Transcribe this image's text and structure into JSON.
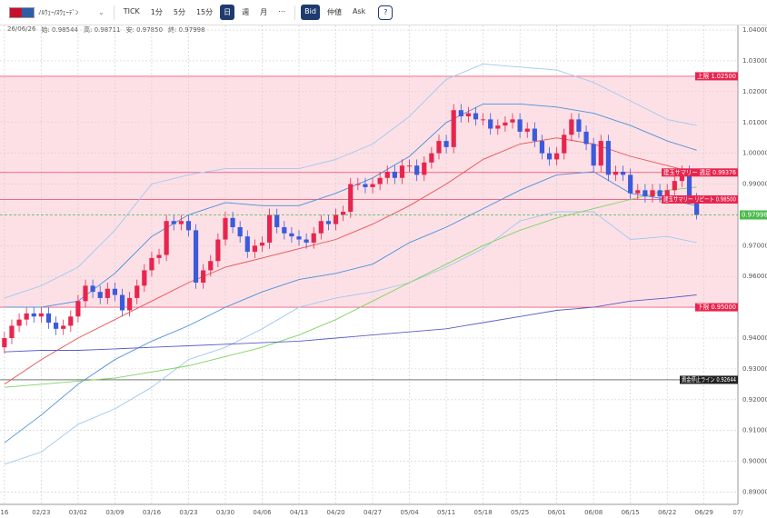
{
  "toolbar": {
    "pair": "ﾉﾙｳｪｰ/ｽｳｪｰﾃﾞﾝ",
    "buttons": [
      "TICK",
      "1分",
      "5分",
      "15分",
      "日",
      "週",
      "月",
      "⋯"
    ],
    "active_button": 4,
    "price_types": [
      "Bid",
      "仲値",
      "Ask"
    ],
    "active_price": 0,
    "help": "?"
  },
  "info_bar": {
    "date": "26/06/26",
    "items": [
      "始: 0.98544",
      "高: 0.98711",
      "安: 0.97850",
      "終: 0.97998"
    ]
  },
  "chart_data": {
    "type": "candlestick",
    "up_color": "#e8254e",
    "down_color": "#3b5bdb",
    "open": [
      0.937,
      0.94,
      0.944,
      0.946,
      0.948,
      0.947,
      0.948,
      0.945,
      0.943,
      0.944,
      0.947,
      0.952,
      0.957,
      0.955,
      0.953,
      0.956,
      0.954,
      0.949,
      0.953,
      0.957,
      0.962,
      0.966,
      0.967,
      0.978,
      0.977,
      0.978,
      0.975,
      0.958,
      0.962,
      0.965,
      0.972,
      0.979,
      0.976,
      0.973,
      0.968,
      0.97,
      0.971,
      0.98,
      0.976,
      0.974,
      0.973,
      0.972,
      0.971,
      0.974,
      0.978,
      0.977,
      0.98,
      0.981,
      0.99,
      0.99,
      0.989,
      0.99,
      0.992,
      0.994,
      0.992,
      0.996,
      0.996,
      0.993,
      0.997,
      1.0,
      1.004,
      1.002,
      1.014,
      1.012,
      1.013,
      1.011,
      1.011,
      1.008,
      1.009,
      1.01,
      1.011,
      1.007,
      1.008,
      1.004,
      1.0,
      0.998,
      1.0,
      1.006,
      1.011,
      1.007,
      1.003,
      0.996,
      1.004,
      0.993,
      0.994,
      0.993,
      0.987,
      0.988,
      0.986,
      0.988,
      0.986,
      0.988,
      0.991,
      0.994,
      0.98544
    ],
    "high": [
      0.942,
      0.946,
      0.948,
      0.95,
      0.95,
      0.95,
      0.95,
      0.947,
      0.946,
      0.949,
      0.954,
      0.959,
      0.959,
      0.957,
      0.958,
      0.958,
      0.956,
      0.955,
      0.959,
      0.964,
      0.968,
      0.969,
      0.98,
      0.98,
      0.98,
      0.98,
      0.977,
      0.964,
      0.967,
      0.974,
      0.981,
      0.981,
      0.978,
      0.975,
      0.972,
      0.973,
      0.982,
      0.982,
      0.978,
      0.976,
      0.975,
      0.974,
      0.976,
      0.98,
      0.98,
      0.982,
      0.983,
      0.992,
      0.992,
      0.992,
      0.992,
      0.994,
      0.996,
      0.996,
      0.998,
      0.998,
      0.998,
      0.999,
      1.002,
      1.006,
      1.006,
      1.016,
      1.016,
      1.015,
      1.015,
      1.013,
      1.013,
      1.011,
      1.012,
      1.013,
      1.013,
      1.01,
      1.01,
      1.006,
      1.002,
      1.002,
      1.008,
      1.013,
      1.013,
      1.009,
      1.005,
      1.006,
      1.006,
      0.996,
      0.996,
      0.995,
      0.99,
      0.99,
      0.99,
      0.99,
      0.99,
      0.993,
      0.996,
      0.996,
      0.98711
    ],
    "low": [
      0.935,
      0.938,
      0.942,
      0.944,
      0.945,
      0.945,
      0.943,
      0.941,
      0.941,
      0.942,
      0.945,
      0.95,
      0.953,
      0.951,
      0.951,
      0.952,
      0.947,
      0.947,
      0.951,
      0.955,
      0.96,
      0.964,
      0.965,
      0.975,
      0.975,
      0.973,
      0.956,
      0.956,
      0.96,
      0.963,
      0.97,
      0.974,
      0.971,
      0.966,
      0.966,
      0.968,
      0.969,
      0.974,
      0.972,
      0.971,
      0.97,
      0.969,
      0.969,
      0.972,
      0.975,
      0.975,
      0.978,
      0.979,
      0.988,
      0.987,
      0.987,
      0.988,
      0.99,
      0.99,
      0.99,
      0.994,
      0.991,
      0.991,
      0.995,
      0.998,
      1.0,
      1.0,
      1.01,
      1.01,
      1.009,
      1.009,
      1.006,
      1.006,
      1.007,
      1.008,
      1.005,
      1.005,
      1.002,
      0.998,
      0.996,
      0.996,
      0.998,
      1.004,
      1.005,
      1.001,
      0.994,
      0.994,
      0.991,
      0.991,
      0.991,
      0.985,
      0.985,
      0.984,
      0.984,
      0.984,
      0.984,
      0.986,
      0.989,
      0.9835,
      0.9785
    ],
    "close": [
      0.94,
      0.944,
      0.946,
      0.948,
      0.947,
      0.948,
      0.945,
      0.943,
      0.944,
      0.947,
      0.952,
      0.957,
      0.955,
      0.953,
      0.956,
      0.954,
      0.949,
      0.953,
      0.957,
      0.962,
      0.966,
      0.967,
      0.978,
      0.977,
      0.978,
      0.975,
      0.958,
      0.962,
      0.965,
      0.972,
      0.979,
      0.976,
      0.973,
      0.968,
      0.97,
      0.971,
      0.98,
      0.976,
      0.974,
      0.973,
      0.972,
      0.971,
      0.974,
      0.978,
      0.977,
      0.98,
      0.981,
      0.99,
      0.99,
      0.989,
      0.99,
      0.992,
      0.994,
      0.992,
      0.996,
      0.996,
      0.993,
      0.997,
      1.0,
      1.004,
      1.002,
      1.014,
      1.012,
      1.013,
      1.011,
      1.011,
      1.008,
      1.009,
      1.01,
      1.011,
      1.007,
      1.008,
      1.004,
      1.0,
      0.998,
      1.0,
      1.006,
      1.011,
      1.007,
      1.003,
      0.996,
      1.004,
      0.993,
      0.994,
      0.993,
      0.987,
      0.988,
      0.986,
      0.988,
      0.986,
      0.988,
      0.991,
      0.994,
      0.98544,
      0.97998
    ],
    "indicators": [
      {
        "color": "#9ec9ef",
        "x": [
          0,
          5,
          10,
          15,
          20,
          25,
          30,
          35,
          40,
          45,
          50,
          55,
          60,
          65,
          70,
          75,
          80,
          85,
          90,
          94
        ],
        "values": [
          0.953,
          0.957,
          0.963,
          0.975,
          0.99,
          0.993,
          0.995,
          0.995,
          0.995,
          0.998,
          1.003,
          1.012,
          1.024,
          1.029,
          1.028,
          1.027,
          1.023,
          1.017,
          1.011,
          1.009
        ]
      },
      {
        "color": "#4a90d9",
        "x": [
          0,
          5,
          10,
          15,
          20,
          25,
          30,
          35,
          40,
          45,
          50,
          55,
          60,
          65,
          70,
          75,
          80,
          85,
          90,
          94
        ],
        "values": [
          0.95,
          0.95,
          0.952,
          0.961,
          0.973,
          0.98,
          0.984,
          0.983,
          0.983,
          0.987,
          0.992,
          0.999,
          1.01,
          1.016,
          1.016,
          1.015,
          1.013,
          1.009,
          1.004,
          1.001
        ]
      },
      {
        "color": "#4a90d9",
        "x": [
          0,
          5,
          10,
          15,
          20,
          25,
          30,
          35,
          40,
          45,
          50,
          55,
          60,
          65,
          70,
          75,
          80,
          85,
          90,
          94
        ],
        "values": [
          0.906,
          0.915,
          0.925,
          0.933,
          0.939,
          0.944,
          0.95,
          0.955,
          0.959,
          0.961,
          0.964,
          0.971,
          0.976,
          0.982,
          0.988,
          0.993,
          0.994,
          0.987,
          0.985,
          0.983
        ]
      },
      {
        "color": "#9ec9ef",
        "x": [
          0,
          5,
          10,
          15,
          20,
          25,
          30,
          35,
          40,
          45,
          50,
          55,
          60,
          65,
          70,
          75,
          80,
          85,
          90,
          94
        ],
        "values": [
          0.899,
          0.903,
          0.912,
          0.917,
          0.924,
          0.933,
          0.937,
          0.943,
          0.95,
          0.953,
          0.955,
          0.958,
          0.963,
          0.969,
          0.978,
          0.981,
          0.981,
          0.972,
          0.973,
          0.971
        ]
      },
      {
        "color": "#e8504f",
        "x": [
          0,
          5,
          10,
          15,
          20,
          25,
          30,
          35,
          40,
          45,
          50,
          55,
          60,
          65,
          70,
          75,
          80,
          85,
          90,
          94
        ],
        "values": [
          0.925,
          0.933,
          0.94,
          0.946,
          0.952,
          0.958,
          0.963,
          0.966,
          0.969,
          0.972,
          0.977,
          0.983,
          0.99,
          0.998,
          1.003,
          1.005,
          1.003,
          0.999,
          0.996,
          0.9935
        ]
      },
      {
        "color": "#7ed35f",
        "x": [
          0,
          5,
          10,
          15,
          20,
          25,
          30,
          35,
          40,
          45,
          50,
          55,
          60,
          65,
          70,
          75,
          80,
          85,
          90,
          94
        ],
        "values": [
          0.924,
          0.925,
          0.926,
          0.927,
          0.929,
          0.931,
          0.934,
          0.937,
          0.941,
          0.946,
          0.952,
          0.958,
          0.964,
          0.97,
          0.975,
          0.979,
          0.982,
          0.985,
          0.988,
          0.989
        ]
      },
      {
        "color": "#5b5bc8",
        "x": [
          0,
          5,
          10,
          15,
          20,
          25,
          30,
          35,
          40,
          45,
          50,
          55,
          60,
          65,
          70,
          75,
          80,
          85,
          90,
          94
        ],
        "values": [
          0.9355,
          0.936,
          0.936,
          0.9365,
          0.937,
          0.9375,
          0.938,
          0.9385,
          0.939,
          0.94,
          0.941,
          0.942,
          0.943,
          0.945,
          0.947,
          0.949,
          0.95,
          0.952,
          0.953,
          0.954
        ]
      }
    ],
    "reference_lines": [
      {
        "label": "上限 1.02500",
        "value": 1.025,
        "color": "#e8254e"
      },
      {
        "label": "下限 0.95000",
        "value": 0.95,
        "color": "#e8254e"
      },
      {
        "label": "建玉サマリー 週足 0.99376",
        "value": 0.99376,
        "color": "#e8254e"
      },
      {
        "label": "建玉サマリー リピート 0.98500",
        "value": 0.985,
        "color": "#e8254e"
      },
      {
        "label": "資金停止ライン 0.92644",
        "value": 0.92644,
        "color": "#222222"
      }
    ],
    "band_color": "#fde0e6",
    "current_color": "#4cbb4c",
    "xlim": [
      -0.6,
      99.6
    ],
    "xticks": [
      {
        "value": 0,
        "label": "16"
      },
      {
        "value": 5,
        "label": "02/23"
      },
      {
        "value": 10,
        "label": "03/02"
      },
      {
        "value": 15,
        "label": "03/09"
      },
      {
        "value": 20,
        "label": "03/16"
      },
      {
        "value": 25,
        "label": "03/23"
      },
      {
        "value": 30,
        "label": "03/30"
      },
      {
        "value": 35,
        "label": "04/06"
      },
      {
        "value": 40,
        "label": "04/13"
      },
      {
        "value": 45,
        "label": "04/20"
      },
      {
        "value": 50,
        "label": "04/27"
      },
      {
        "value": 55,
        "label": "05/04"
      },
      {
        "value": 60,
        "label": "05/11"
      },
      {
        "value": 65,
        "label": "05/18"
      },
      {
        "value": 70,
        "label": "05/25"
      },
      {
        "value": 75,
        "label": "06/01"
      },
      {
        "value": 80,
        "label": "06/08"
      },
      {
        "value": 85,
        "label": "06/15"
      },
      {
        "value": 90,
        "label": "06/22"
      },
      {
        "value": 95,
        "label": "06/29"
      },
      {
        "value": 99.6,
        "label": "07/"
      }
    ],
    "ylim": [
      0.886,
      1.0415
    ],
    "yticks": [
      {
        "value": 1.04,
        "label": "1.04000"
      },
      {
        "value": 1.03,
        "label": "1.03000"
      },
      {
        "value": 1.02,
        "label": "1.02000"
      },
      {
        "value": 1.01,
        "label": "1.01000"
      },
      {
        "value": 1.0,
        "label": "1.00000"
      },
      {
        "value": 0.99,
        "label": "0.99000"
      },
      {
        "value": 0.97,
        "label": "0.97000"
      },
      {
        "value": 0.96,
        "label": "0.96000"
      },
      {
        "value": 0.94,
        "label": "0.94000"
      },
      {
        "value": 0.93,
        "label": "0.93000"
      },
      {
        "value": 0.92,
        "label": "0.92000"
      },
      {
        "value": 0.91,
        "label": "0.91000"
      },
      {
        "value": 0.9,
        "label": "0.90000"
      },
      {
        "value": 0.89,
        "label": "0.89000"
      }
    ],
    "grid": true
  }
}
